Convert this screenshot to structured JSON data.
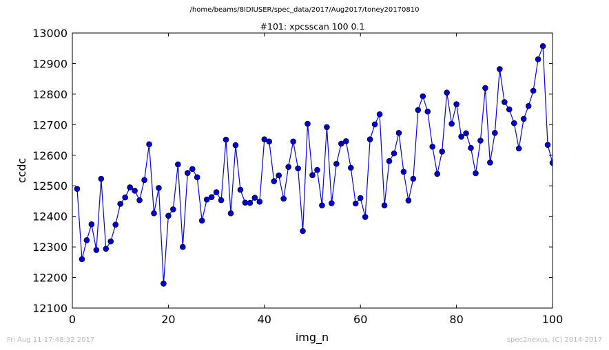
{
  "suptitle": "/home/beams/8IDIUSER/spec_data/2017/Aug2017/toney20170810",
  "footer": {
    "timestamp": "Fri Aug 11 17:48:32 2017",
    "credit": "spec2nexus, (C) 2014-2017"
  },
  "colors": {
    "series": "#0000ff",
    "marker_fill": "#0000cc",
    "axes": "#000000"
  },
  "chart_data": {
    "type": "line",
    "title": "#101: xpcsscan 100 0.1",
    "xlabel": "img_n",
    "ylabel": "ccdc",
    "xlim": [
      0,
      100
    ],
    "ylim": [
      12100,
      13000
    ],
    "xticks": [
      0,
      20,
      40,
      60,
      80,
      100
    ],
    "yticks": [
      12100,
      12200,
      12300,
      12400,
      12500,
      12600,
      12700,
      12800,
      12900,
      13000
    ],
    "xtick_labels": [
      "0",
      "20",
      "40",
      "60",
      "80",
      "100"
    ],
    "ytick_labels": [
      "12100",
      "12200",
      "12300",
      "12400",
      "12500",
      "12600",
      "12700",
      "12800",
      "12900",
      "13000"
    ],
    "grid": false,
    "legend": "none",
    "series": [
      {
        "marker": "circle",
        "x": [
          1,
          2,
          3,
          4,
          5,
          6,
          7,
          8,
          9,
          10,
          11,
          12,
          13,
          14,
          15,
          16,
          17,
          18,
          19,
          20,
          21,
          22,
          23,
          24,
          25,
          26,
          27,
          28,
          29,
          30,
          31,
          32,
          33,
          34,
          35,
          36,
          37,
          38,
          39,
          40,
          41,
          42,
          43,
          44,
          45,
          46,
          47,
          48,
          49,
          50,
          51,
          52,
          53,
          54,
          55,
          56,
          57,
          58,
          59,
          60,
          61,
          62,
          63,
          64,
          65,
          66,
          67,
          68,
          69,
          70,
          71,
          72,
          73,
          74,
          75,
          76,
          77,
          78,
          79,
          80,
          81,
          82,
          83,
          84,
          85,
          86,
          87,
          88,
          89,
          90,
          91,
          92,
          93,
          94,
          95,
          96,
          97,
          98,
          99,
          100
        ],
        "y": [
          12490,
          12260,
          12322,
          12374,
          12290,
          12523,
          12294,
          12318,
          12373,
          12441,
          12462,
          12495,
          12484,
          12453,
          12519,
          12636,
          12410,
          12493,
          12180,
          12402,
          12423,
          12570,
          12300,
          12542,
          12555,
          12528,
          12386,
          12455,
          12463,
          12479,
          12453,
          12651,
          12410,
          12633,
          12487,
          12445,
          12444,
          12461,
          12448,
          12652,
          12645,
          12515,
          12534,
          12458,
          12562,
          12645,
          12557,
          12352,
          12703,
          12535,
          12552,
          12436,
          12692,
          12443,
          12572,
          12638,
          12646,
          12559,
          12442,
          12460,
          12398,
          12652,
          12701,
          12734,
          12436,
          12581,
          12606,
          12673,
          12546,
          12452,
          12523,
          12748,
          12793,
          12743,
          12628,
          12539,
          12612,
          12805,
          12703,
          12767,
          12661,
          12672,
          12624,
          12541,
          12648,
          12820,
          12576,
          12673,
          12882,
          12774,
          12750,
          12705,
          12622,
          12719,
          12761,
          12811,
          12914,
          12957,
          12634,
          12575
        ]
      }
    ]
  }
}
